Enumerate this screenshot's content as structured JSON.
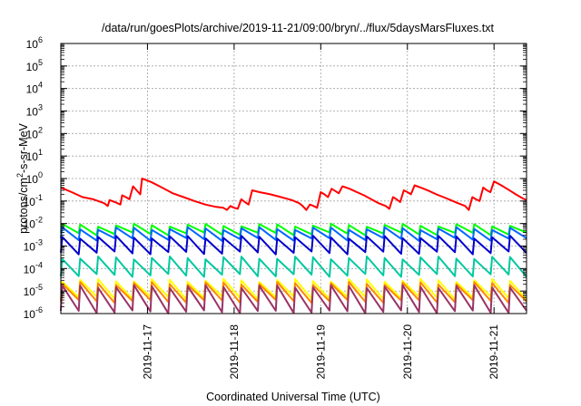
{
  "chart_data": {
    "type": "line",
    "title": "/data/run/goesPlots/archive/2019-11-21/09:00/bryn/../flux/5daysMarsFluxes.txt",
    "xlabel": "Coordinated Universal Time (UTC)",
    "ylabel": {
      "prefix": "protons/cm",
      "sup": "2",
      "suffix": "-s-sr-MeV"
    },
    "yscale": "log",
    "ylim": [
      1e-06,
      1000000.0
    ],
    "xlim": [
      "2019-11-16 00:00",
      "2019-11-21 09:00"
    ],
    "grid": true,
    "y_ticks": [
      {
        "base": "10",
        "exp": "-6"
      },
      {
        "base": "10",
        "exp": "-5"
      },
      {
        "base": "10",
        "exp": "-4"
      },
      {
        "base": "10",
        "exp": "-3"
      },
      {
        "base": "10",
        "exp": "-2"
      },
      {
        "base": "10",
        "exp": "-1"
      },
      {
        "base": "10",
        "exp": "0"
      },
      {
        "base": "10",
        "exp": "1"
      },
      {
        "base": "10",
        "exp": "2"
      },
      {
        "base": "10",
        "exp": "3"
      },
      {
        "base": "10",
        "exp": "4"
      },
      {
        "base": "10",
        "exp": "5"
      },
      {
        "base": "10",
        "exp": "6"
      }
    ],
    "x_ticks": [
      "2019-11-17",
      "2019-11-18",
      "2019-11-19",
      "2019-11-20",
      "2019-11-21"
    ],
    "series": [
      {
        "color": "#ff0000",
        "points": [
          [
            "11-16 00:00",
            0.4
          ],
          [
            "11-16 03:00",
            0.25
          ],
          [
            "11-16 06:00",
            0.15
          ],
          [
            "11-16 09:00",
            0.12
          ],
          [
            "11-16 12:00",
            0.08
          ],
          [
            "11-16 13:00",
            0.06
          ],
          [
            "11-16 13:30",
            0.11
          ],
          [
            "11-16 15:00",
            0.09
          ],
          [
            "11-16 16:30",
            0.07
          ],
          [
            "11-16 17:00",
            0.18
          ],
          [
            "11-16 18:00",
            0.15
          ],
          [
            "11-16 19:00",
            0.12
          ],
          [
            "11-16 20:00",
            0.45
          ],
          [
            "11-16 21:00",
            0.3
          ],
          [
            "11-16 22:00",
            0.2
          ],
          [
            "11-16 22:30",
            1.0
          ],
          [
            "11-17 01:00",
            0.7
          ],
          [
            "11-17 04:00",
            0.4
          ],
          [
            "11-17 07:00",
            0.22
          ],
          [
            "11-17 10:00",
            0.15
          ],
          [
            "11-17 13:00",
            0.1
          ],
          [
            "11-17 16:00",
            0.07
          ],
          [
            "11-17 19:00",
            0.055
          ],
          [
            "11-17 21:00",
            0.05
          ],
          [
            "11-17 22:00",
            0.04
          ],
          [
            "11-17 23:00",
            0.06
          ],
          [
            "11-18 00:00",
            0.05
          ],
          [
            "11-18 01:00",
            0.045
          ],
          [
            "11-18 02:00",
            0.12
          ],
          [
            "11-18 03:00",
            0.09
          ],
          [
            "11-18 04:00",
            0.07
          ],
          [
            "11-18 05:00",
            0.3
          ],
          [
            "11-18 07:00",
            0.25
          ],
          [
            "11-18 10:00",
            0.2
          ],
          [
            "11-18 13:00",
            0.15
          ],
          [
            "11-18 16:00",
            0.11
          ],
          [
            "11-18 18:00",
            0.08
          ],
          [
            "11-18 19:00",
            0.06
          ],
          [
            "11-18 20:00",
            0.04
          ],
          [
            "11-18 21:00",
            0.07
          ],
          [
            "11-18 22:00",
            0.06
          ],
          [
            "11-18 23:00",
            0.05
          ],
          [
            "11-19 00:00",
            0.25
          ],
          [
            "11-19 01:00",
            0.2
          ],
          [
            "11-19 02:00",
            0.15
          ],
          [
            "11-19 03:00",
            0.35
          ],
          [
            "11-19 04:00",
            0.28
          ],
          [
            "11-19 05:00",
            0.22
          ],
          [
            "11-19 06:00",
            0.45
          ],
          [
            "11-19 08:00",
            0.35
          ],
          [
            "11-19 10:00",
            0.25
          ],
          [
            "11-19 12:00",
            0.18
          ],
          [
            "11-19 14:00",
            0.12
          ],
          [
            "11-19 16:00",
            0.08
          ],
          [
            "11-19 18:00",
            0.06
          ],
          [
            "11-19 19:00",
            0.045
          ],
          [
            "11-19 20:00",
            0.15
          ],
          [
            "11-19 21:00",
            0.12
          ],
          [
            "11-19 22:00",
            0.09
          ],
          [
            "11-19 23:00",
            0.3
          ],
          [
            "11-20 00:00",
            0.25
          ],
          [
            "11-20 01:00",
            0.2
          ],
          [
            "11-20 02:00",
            0.5
          ],
          [
            "11-20 04:00",
            0.38
          ],
          [
            "11-20 06:00",
            0.28
          ],
          [
            "11-20 08:00",
            0.2
          ],
          [
            "11-20 10:00",
            0.15
          ],
          [
            "11-20 12:00",
            0.11
          ],
          [
            "11-20 14:00",
            0.08
          ],
          [
            "11-20 16:00",
            0.06
          ],
          [
            "11-20 17:00",
            0.04
          ],
          [
            "11-20 18:00",
            0.15
          ],
          [
            "11-20 19:00",
            0.12
          ],
          [
            "11-20 20:00",
            0.1
          ],
          [
            "11-20 21:00",
            0.4
          ],
          [
            "11-20 22:00",
            0.3
          ],
          [
            "11-20 23:00",
            0.25
          ],
          [
            "11-21 00:00",
            0.75
          ],
          [
            "11-21 02:00",
            0.5
          ],
          [
            "11-21 04:00",
            0.32
          ],
          [
            "11-21 06:00",
            0.2
          ],
          [
            "11-21 08:00",
            0.13
          ],
          [
            "11-21 09:00",
            0.11
          ]
        ]
      },
      {
        "color": "#00ff00",
        "sawtooth": {
          "peak": 0.0085,
          "trough": 0.0035,
          "teeth": 26
        }
      },
      {
        "color": "#0066ff",
        "sawtooth": {
          "peak": 0.006,
          "trough": 0.002,
          "teeth": 26
        }
      },
      {
        "color": "#0000cc",
        "sawtooth": {
          "peak": 0.0025,
          "trough": 0.0005,
          "teeth": 26
        }
      },
      {
        "color": "#00c8a0",
        "sawtooth": {
          "peak": 0.0003,
          "trough": 5e-05,
          "teeth": 26
        }
      },
      {
        "color": "#ffff00",
        "sawtooth": {
          "peak": 3e-05,
          "trough": 5e-06,
          "teeth": 26
        }
      },
      {
        "color": "#ff8800",
        "sawtooth": {
          "peak": 2.2e-05,
          "trough": 3.5e-06,
          "teeth": 26
        }
      },
      {
        "color": "#993366",
        "sawtooth": {
          "peak": 1.6e-05,
          "trough": 1.2e-06,
          "teeth": 26
        }
      }
    ]
  }
}
